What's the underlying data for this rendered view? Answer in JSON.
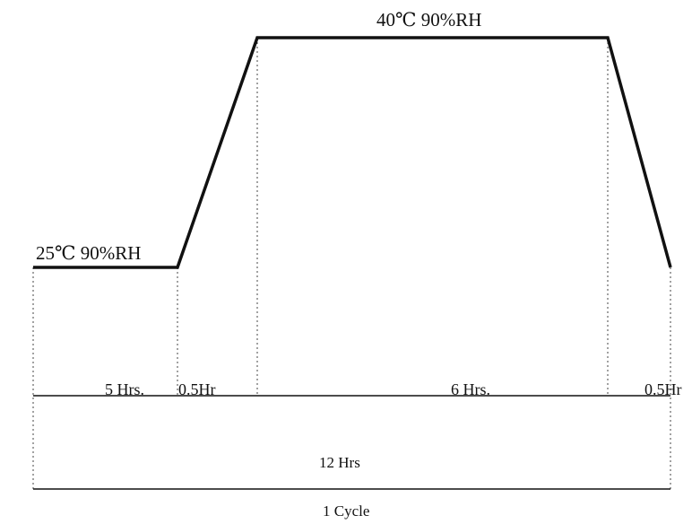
{
  "labels": {
    "low_condition": "25℃ 90%RH",
    "high_condition": "40℃ 90%RH",
    "segment_1": "5 Hrs.",
    "segment_2": "0.5Hr",
    "segment_3": "6 Hrs.",
    "segment_4": "0.5Hr",
    "total": "12 Hrs",
    "cycle": "1 Cycle"
  },
  "colors": {
    "line": "#111111",
    "guide": "#444444"
  }
}
